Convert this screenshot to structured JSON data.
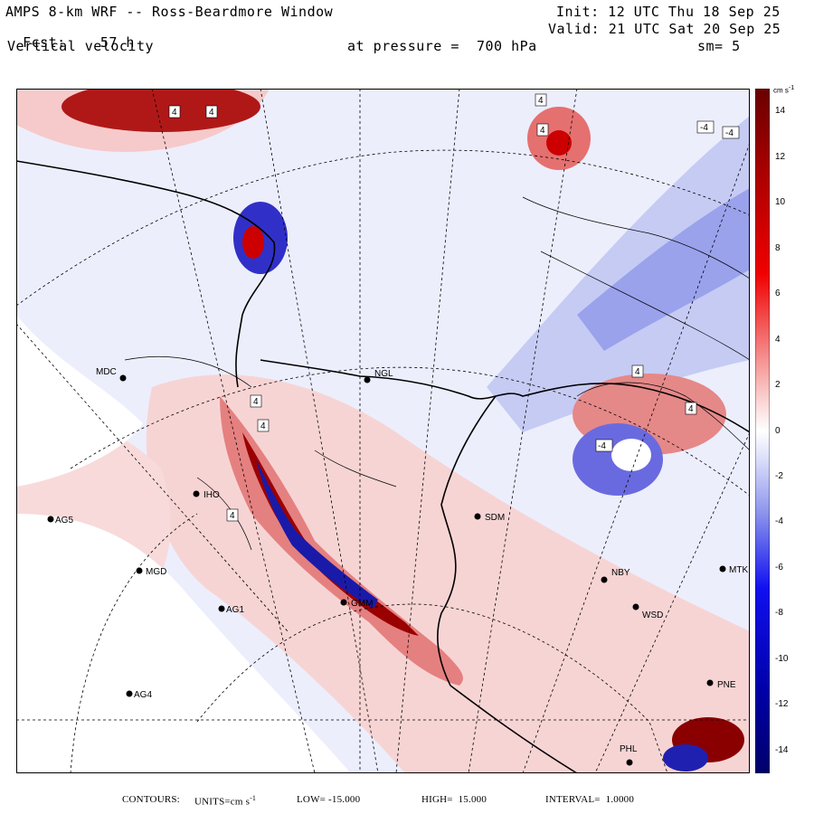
{
  "header": {
    "left_line1": "AMPS 8-km WRF -- Ross-Beardmore Window",
    "left_line2_label": "Fcst:",
    "left_line2_value": "57 h",
    "left_line3": "Vertical velocity",
    "right_line1": "Init: 12 UTC Thu 18 Sep 25",
    "right_line2": "Valid: 21 UTC Sat 20 Sep 25",
    "pressure_label": "at pressure =  700 hPa",
    "smoothing": "sm= 5"
  },
  "colorbar": {
    "unit_label": "cm s",
    "unit_exponent": "-1",
    "ticks": [
      "14",
      "12",
      "10",
      "8",
      "6",
      "4",
      "2",
      "0",
      "-2",
      "-4",
      "-6",
      "-8",
      "-10",
      "-12",
      "-14"
    ],
    "range": [
      -15,
      15
    ],
    "colors": {
      "dark_red": "#7a0000",
      "red": "#e00000",
      "light_red": "#f4b4b4",
      "pale_red": "#fbe2e2",
      "white": "#ffffff",
      "pale_blue": "#e4e6fb",
      "light_blue": "#b4b8f0",
      "blue": "#2020e0",
      "dark_blue": "#00007a"
    }
  },
  "stations": [
    {
      "id": "MDC",
      "label": "MDC"
    },
    {
      "id": "NGL",
      "label": "NGL"
    },
    {
      "id": "SDM",
      "label": "SDM"
    },
    {
      "id": "NBY",
      "label": "NBY"
    },
    {
      "id": "MTK",
      "label": "MTK"
    },
    {
      "id": "WSD",
      "label": "WSD"
    },
    {
      "id": "PNE",
      "label": "PNE"
    },
    {
      "id": "PHL",
      "label": "PHL"
    },
    {
      "id": "AG5",
      "label": "AG5"
    },
    {
      "id": "MGD",
      "label": "MGD"
    },
    {
      "id": "AG1",
      "label": "AG1"
    },
    {
      "id": "AG4",
      "label": "AG4"
    },
    {
      "id": "IHO",
      "label": "IHO"
    },
    {
      "id": "GMM",
      "label": "GMM"
    }
  ],
  "contour_labels": [
    "4",
    "-4",
    "-4",
    "4",
    "4",
    "4",
    "4",
    "4",
    "4",
    "4",
    "-4",
    "4"
  ],
  "footer": {
    "contours_label": "CONTOURS:",
    "units_label": "UNITS=cm s",
    "units_exp": "-1",
    "low_label": "LOW=",
    "low_value": "-15.000",
    "high_label": "HIGH=",
    "high_value": "15.000",
    "interval_label": "INTERVAL=",
    "interval_value": "1.0000"
  }
}
